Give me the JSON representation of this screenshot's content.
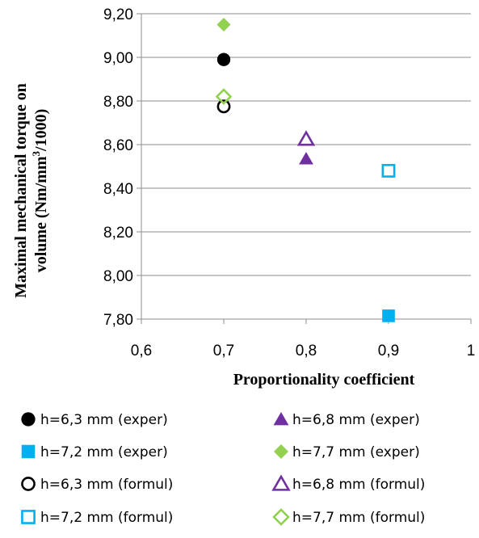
{
  "chart_data": {
    "type": "scatter",
    "xlabel": "Proportionality coefficient",
    "ylabel_line1": "Maximal mechanical torque on",
    "ylabel_line2_prefix": "volume (Nm/mm",
    "ylabel_line2_sup": "3",
    "ylabel_line2_suffix": "/1000)",
    "xlim": [
      0.6,
      1.0
    ],
    "ylim": [
      7.8,
      9.2
    ],
    "grid": "horizontal",
    "legend_position": "bottom",
    "x_ticks": [
      {
        "value": 0.6,
        "label": "0,6"
      },
      {
        "value": 0.7,
        "label": "0,7"
      },
      {
        "value": 0.8,
        "label": "0,8"
      },
      {
        "value": 0.9,
        "label": "0,9"
      },
      {
        "value": 1.0,
        "label": "1"
      }
    ],
    "y_ticks": [
      {
        "value": 7.8,
        "label": "7,80"
      },
      {
        "value": 8.0,
        "label": "8,00"
      },
      {
        "value": 8.2,
        "label": "8,20"
      },
      {
        "value": 8.4,
        "label": "8,40"
      },
      {
        "value": 8.6,
        "label": "8,60"
      },
      {
        "value": 8.8,
        "label": "8,80"
      },
      {
        "value": 9.0,
        "label": "9,00"
      },
      {
        "value": 9.2,
        "label": "9,20"
      }
    ],
    "series": [
      {
        "name": "h=6,3 mm (exper)",
        "marker": "circle-filled",
        "color": "#000000",
        "points": [
          {
            "x": 0.7,
            "y": 8.99
          }
        ]
      },
      {
        "name": "h=6,8 mm (exper)",
        "marker": "triangle-filled",
        "color": "#7030A0",
        "points": [
          {
            "x": 0.8,
            "y": 8.535
          }
        ]
      },
      {
        "name": "h=7,2 mm (exper)",
        "marker": "square-filled",
        "color": "#00B0F0",
        "points": [
          {
            "x": 0.9,
            "y": 7.815
          }
        ]
      },
      {
        "name": "h=7,7 mm (exper)",
        "marker": "diamond-filled",
        "color": "#92D050",
        "points": [
          {
            "x": 0.7,
            "y": 9.15
          }
        ]
      },
      {
        "name": "h=6,3 mm (formul)",
        "marker": "circle-open",
        "color": "#000000",
        "points": [
          {
            "x": 0.7,
            "y": 8.775
          }
        ]
      },
      {
        "name": "h=6,8 mm (formul)",
        "marker": "triangle-open",
        "color": "#7030A0",
        "points": [
          {
            "x": 0.8,
            "y": 8.625
          }
        ]
      },
      {
        "name": "h=7,2 mm (formul)",
        "marker": "square-open",
        "color": "#00B0F0",
        "points": [
          {
            "x": 0.9,
            "y": 8.48
          }
        ]
      },
      {
        "name": "h=7,7 mm (formul)",
        "marker": "diamond-open",
        "color": "#92D050",
        "points": [
          {
            "x": 0.7,
            "y": 8.82
          }
        ]
      }
    ]
  }
}
